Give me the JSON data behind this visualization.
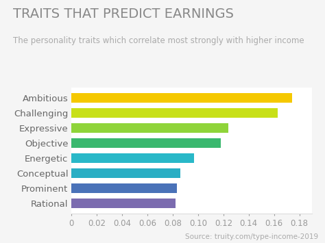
{
  "title": "TRAITS THAT PREDICT EARNINGS",
  "subtitle": "The personality traits which correlate most strongly with higher income",
  "source": "Source: truity.com/type-income-2019",
  "categories": [
    "Rational",
    "Prominent",
    "Conceptual",
    "Energetic",
    "Objective",
    "Expressive",
    "Challenging",
    "Ambitious"
  ],
  "values": [
    0.082,
    0.083,
    0.086,
    0.097,
    0.118,
    0.124,
    0.163,
    0.174
  ],
  "bar_colors": [
    "#7b6baf",
    "#4a72b8",
    "#29aec4",
    "#29b8c8",
    "#3ab86e",
    "#8fd43a",
    "#c8e018",
    "#f5c800"
  ],
  "background_color": "#f5f5f5",
  "plot_bg_color": "#ffffff",
  "title_color": "#888888",
  "subtitle_color": "#aaaaaa",
  "label_color": "#666666",
  "source_color": "#aaaaaa",
  "tick_color": "#999999",
  "xlim": [
    0,
    0.19
  ],
  "xticks": [
    0,
    0.02,
    0.04,
    0.06,
    0.08,
    0.1,
    0.12,
    0.14,
    0.16,
    0.18
  ],
  "bar_height": 0.62,
  "title_fontsize": 14,
  "subtitle_fontsize": 8.5,
  "label_fontsize": 9.5,
  "tick_fontsize": 8.5,
  "source_fontsize": 7.5
}
